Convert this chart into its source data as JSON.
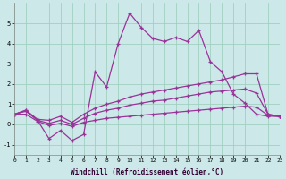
{
  "xlabel": "Windchill (Refroidissement éolien,°C)",
  "x": [
    0,
    1,
    2,
    3,
    4,
    5,
    6,
    7,
    8,
    9,
    10,
    11,
    12,
    13,
    14,
    15,
    16,
    17,
    18,
    19,
    20,
    21,
    22,
    23
  ],
  "line_top": [
    0.5,
    0.7,
    0.2,
    -0.7,
    -0.3,
    -0.8,
    -0.5,
    2.6,
    1.85,
    4.0,
    5.5,
    4.8,
    4.25,
    4.1,
    4.3,
    4.1,
    4.65,
    3.1,
    2.6,
    1.5,
    1.05,
    0.5,
    0.4,
    0.4
  ],
  "line_mid1": [
    0.5,
    0.7,
    0.25,
    0.2,
    0.4,
    0.1,
    0.5,
    0.8,
    1.0,
    1.15,
    1.35,
    1.5,
    1.6,
    1.7,
    1.8,
    1.9,
    2.0,
    2.1,
    2.2,
    2.35,
    2.5,
    2.5,
    0.5,
    0.4
  ],
  "line_mid2": [
    0.5,
    0.65,
    0.2,
    0.05,
    0.2,
    0.0,
    0.3,
    0.55,
    0.7,
    0.8,
    0.95,
    1.05,
    1.15,
    1.2,
    1.3,
    1.4,
    1.5,
    1.6,
    1.65,
    1.7,
    1.75,
    1.55,
    0.5,
    0.4
  ],
  "line_bot": [
    0.5,
    0.5,
    0.15,
    -0.05,
    0.05,
    -0.1,
    0.1,
    0.2,
    0.3,
    0.35,
    0.4,
    0.45,
    0.5,
    0.55,
    0.6,
    0.65,
    0.7,
    0.75,
    0.8,
    0.85,
    0.9,
    0.85,
    0.45,
    0.38
  ],
  "bg_color": "#cce8e8",
  "line_color": "#993399",
  "grid_color": "#99ccbb",
  "ylim": [
    -1.5,
    6.0
  ],
  "xlim": [
    0,
    23
  ],
  "yticks": [
    -1,
    0,
    1,
    2,
    3,
    4,
    5
  ],
  "xticks": [
    0,
    1,
    2,
    3,
    4,
    5,
    6,
    7,
    8,
    9,
    10,
    11,
    12,
    13,
    14,
    15,
    16,
    17,
    18,
    19,
    20,
    21,
    22,
    23
  ]
}
